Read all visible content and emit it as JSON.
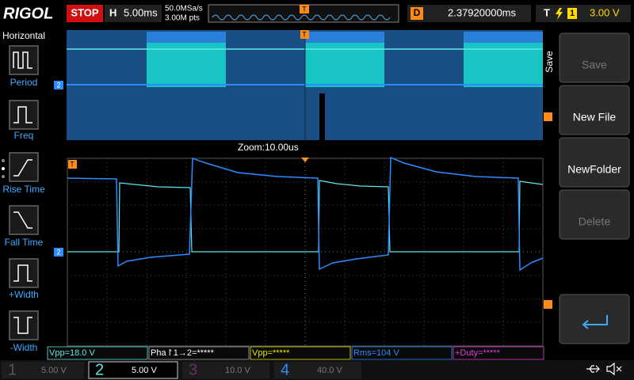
{
  "top_bar": {
    "brand": "RIGOL",
    "run_state": "STOP",
    "timebase_label": "H",
    "timebase": "5.00ms",
    "sample_rate": "50.0MSa/s",
    "memory_depth": "3.00M pts",
    "trigger_marker": "T",
    "delay_label": "D",
    "delay": "2.37920000ms",
    "trigger_label": "T",
    "trigger_source": "1",
    "trigger_level": "3.00 V"
  },
  "left_menu": {
    "title": "Horizontal",
    "items": [
      "Period",
      "Freq",
      "Rise Time",
      "Fall Time",
      "+Width",
      "-Width"
    ]
  },
  "right_menu": {
    "title": "Save",
    "items": [
      "Save",
      "New File",
      "NewFolder",
      "Delete"
    ]
  },
  "display": {
    "zoom_label": "Zoom:10.00us",
    "channel_marker": "2",
    "trigger_marker": "T"
  },
  "measurements": [
    "Vpp=18.0 V",
    "Pha↾1→2=*****",
    "Vpp=*****",
    "Rms=104 V",
    "+Duty=*****"
  ],
  "channels": [
    {
      "number": "1",
      "scale": "5.00 V"
    },
    {
      "number": "2",
      "scale": "5.00 V"
    },
    {
      "number": "3",
      "scale": "10.0 V"
    },
    {
      "number": "4",
      "scale": "40.0 V"
    }
  ]
}
